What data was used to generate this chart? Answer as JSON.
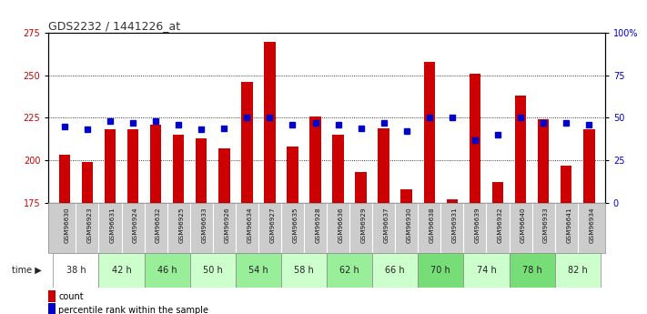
{
  "title": "GDS2232 / 1441226_at",
  "samples": [
    "GSM96630",
    "GSM96923",
    "GSM96631",
    "GSM96924",
    "GSM96632",
    "GSM96925",
    "GSM96633",
    "GSM96926",
    "GSM96634",
    "GSM96927",
    "GSM96635",
    "GSM96928",
    "GSM96636",
    "GSM96929",
    "GSM96637",
    "GSM96930",
    "GSM96638",
    "GSM96931",
    "GSM96639",
    "GSM96932",
    "GSM96640",
    "GSM96933",
    "GSM96641",
    "GSM96934"
  ],
  "time_groups": [
    {
      "label": "38 h",
      "color": "#ffffff"
    },
    {
      "label": "42 h",
      "color": "#ccffcc"
    },
    {
      "label": "46 h",
      "color": "#99ee99"
    },
    {
      "label": "50 h",
      "color": "#ccffcc"
    },
    {
      "label": "54 h",
      "color": "#99ee99"
    },
    {
      "label": "58 h",
      "color": "#ccffcc"
    },
    {
      "label": "62 h",
      "color": "#99ee99"
    },
    {
      "label": "66 h",
      "color": "#ccffcc"
    },
    {
      "label": "70 h",
      "color": "#77dd77"
    },
    {
      "label": "74 h",
      "color": "#ccffcc"
    },
    {
      "label": "78 h",
      "color": "#77dd77"
    },
    {
      "label": "82 h",
      "color": "#ccffcc"
    }
  ],
  "count_values": [
    203,
    199,
    218,
    218,
    221,
    215,
    213,
    207,
    246,
    270,
    208,
    226,
    215,
    193,
    219,
    183,
    258,
    177,
    251,
    187,
    238,
    224,
    197,
    218
  ],
  "percentile_values": [
    45,
    43,
    48,
    47,
    48,
    46,
    43,
    44,
    50,
    50,
    46,
    47,
    46,
    44,
    47,
    42,
    50,
    50,
    37,
    40,
    50,
    47,
    47,
    46
  ],
  "ymin": 175,
  "ymax": 275,
  "yticks_left": [
    175,
    200,
    225,
    250,
    275
  ],
  "yticks_right": [
    0,
    25,
    50,
    75,
    100
  ],
  "bar_color": "#cc0000",
  "dot_color": "#0000cc",
  "bar_bottom": 175,
  "tick_label_color_left": "#cc0000",
  "tick_label_color_right": "#0000cc",
  "sample_bg_color": "#cccccc",
  "tick_fontsize": 7,
  "bar_width": 0.5
}
